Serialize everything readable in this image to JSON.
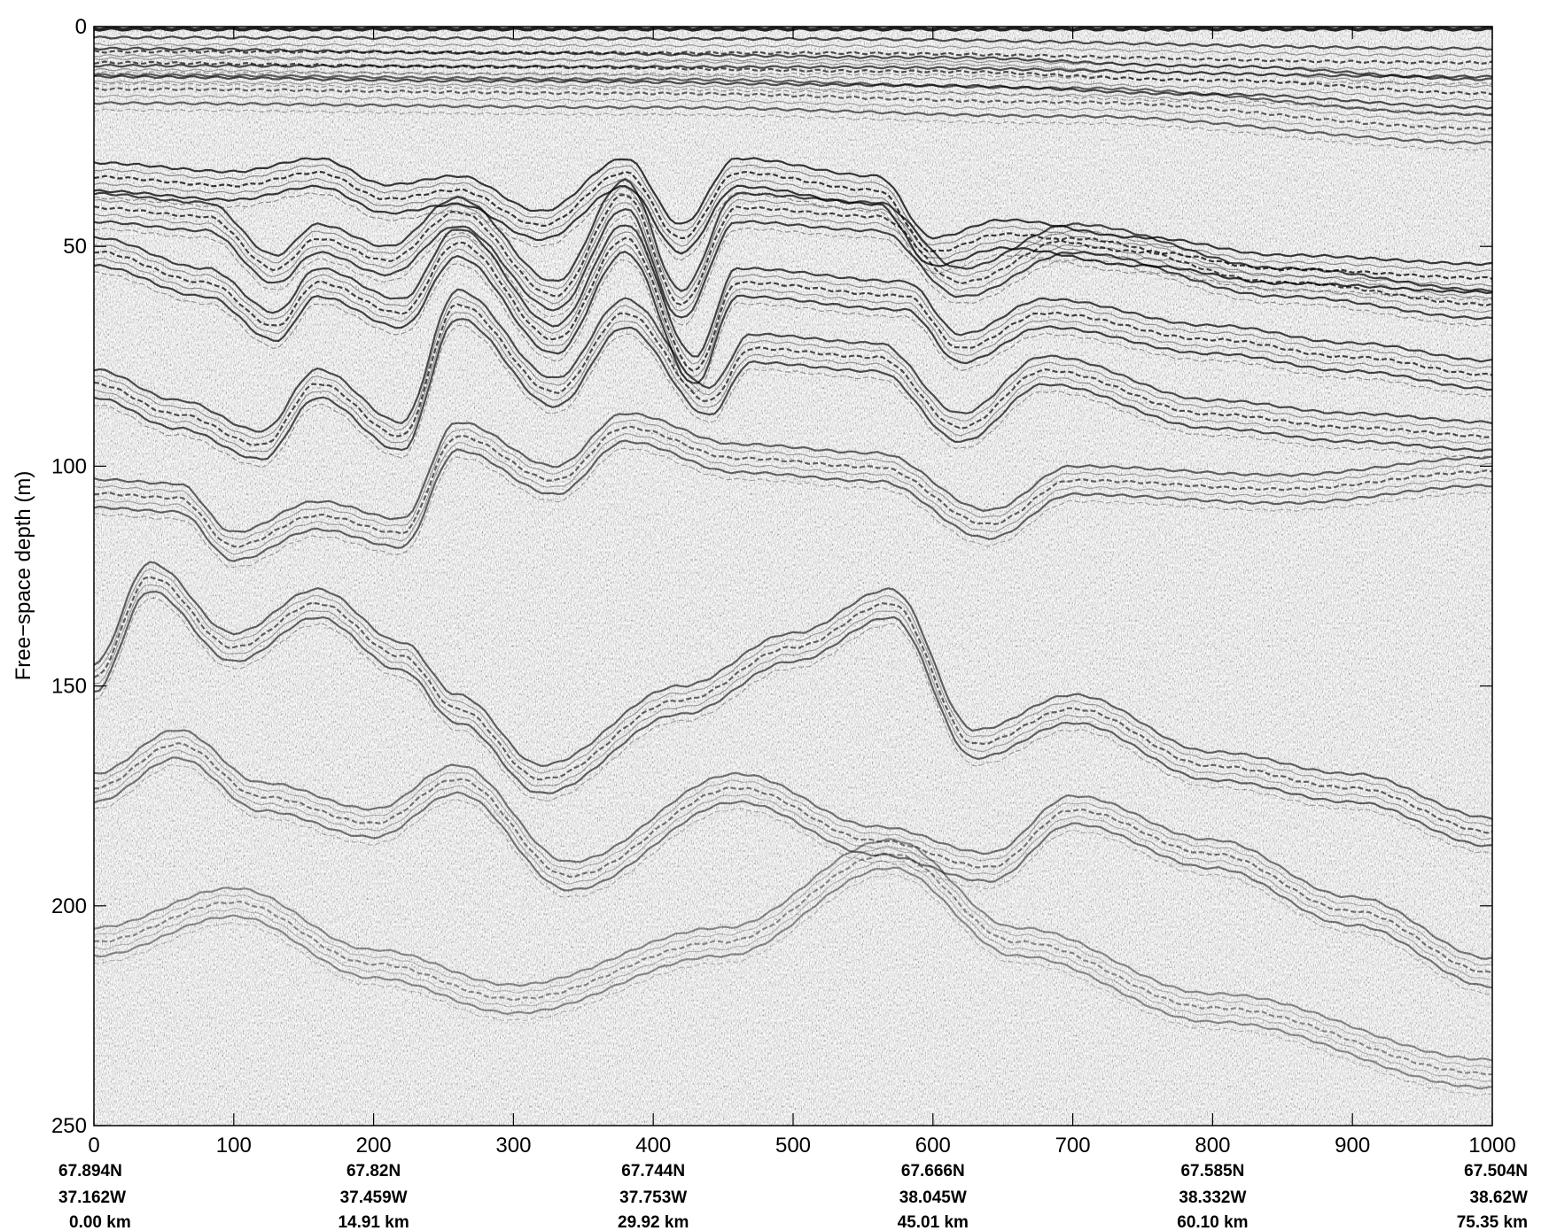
{
  "chart_data": {
    "type": "heatmap",
    "title": "",
    "xlabel": "",
    "ylabel": "Free−space depth (m)",
    "xlim": [
      0,
      1000
    ],
    "ylim": [
      250,
      0
    ],
    "y_inverted": true,
    "colormap": "grayscale",
    "grid": false,
    "x_ticks": [
      0,
      100,
      200,
      300,
      400,
      500,
      600,
      700,
      800,
      900,
      1000
    ],
    "y_ticks": [
      0,
      50,
      100,
      150,
      200,
      250
    ],
    "location_labels": [
      {
        "trace": 0,
        "lat": "67.894N",
        "lon": "37.162W",
        "dist": "0.00 km"
      },
      {
        "trace": 200,
        "lat": "67.82N",
        "lon": "37.459W",
        "dist": "14.91 km"
      },
      {
        "trace": 400,
        "lat": "67.744N",
        "lon": "37.753W",
        "dist": "29.92 km"
      },
      {
        "trace": 600,
        "lat": "67.666N",
        "lon": "38.045W",
        "dist": "45.01 km"
      },
      {
        "trace": 800,
        "lat": "67.585N",
        "lon": "38.332W",
        "dist": "60.10 km"
      },
      {
        "trace": 1000,
        "lat": "67.504N",
        "lon": "38.62W",
        "dist": "75.35 km"
      }
    ],
    "layers": [
      {
        "depths": [
          [
            0,
            0.5
          ],
          [
            1000,
            0.5
          ]
        ],
        "strength": 1.0
      },
      {
        "depths": [
          [
            0,
            2.5
          ],
          [
            500,
            2.8
          ],
          [
            1000,
            5
          ]
        ],
        "strength": 0.8
      },
      {
        "depths": [
          [
            0,
            5
          ],
          [
            300,
            6
          ],
          [
            600,
            7
          ],
          [
            800,
            9
          ],
          [
            1000,
            12
          ]
        ],
        "strength": 0.8
      },
      {
        "depths": [
          [
            0,
            11
          ],
          [
            400,
            12
          ],
          [
            700,
            14
          ],
          [
            1000,
            20
          ]
        ],
        "strength": 0.7
      },
      {
        "depths": [
          [
            0,
            31
          ],
          [
            100,
            33
          ],
          [
            160,
            30
          ],
          [
            210,
            36
          ],
          [
            260,
            34
          ],
          [
            320,
            42
          ],
          [
            380,
            30
          ],
          [
            420,
            45
          ],
          [
            460,
            30
          ],
          [
            560,
            34
          ],
          [
            600,
            48
          ],
          [
            650,
            44
          ],
          [
            750,
            48
          ],
          [
            850,
            52
          ],
          [
            1000,
            54
          ]
        ],
        "strength": 0.9
      },
      {
        "depths": [
          [
            0,
            38
          ],
          [
            80,
            40
          ],
          [
            130,
            52
          ],
          [
            160,
            45
          ],
          [
            210,
            50
          ],
          [
            260,
            39
          ],
          [
            330,
            58
          ],
          [
            380,
            35
          ],
          [
            420,
            60
          ],
          [
            460,
            38
          ],
          [
            560,
            40
          ],
          [
            620,
            55
          ],
          [
            700,
            45
          ],
          [
            850,
            55
          ],
          [
            1000,
            60
          ]
        ],
        "strength": 0.85
      },
      {
        "depths": [
          [
            0,
            48
          ],
          [
            80,
            55
          ],
          [
            130,
            65
          ],
          [
            160,
            55
          ],
          [
            220,
            62
          ],
          [
            260,
            46
          ],
          [
            330,
            68
          ],
          [
            380,
            45
          ],
          [
            430,
            75
          ],
          [
            460,
            55
          ],
          [
            580,
            58
          ],
          [
            620,
            70
          ],
          [
            680,
            62
          ],
          [
            800,
            68
          ],
          [
            900,
            72
          ],
          [
            1000,
            76
          ]
        ],
        "strength": 0.85
      },
      {
        "depths": [
          [
            0,
            78
          ],
          [
            60,
            85
          ],
          [
            120,
            92
          ],
          [
            160,
            78
          ],
          [
            220,
            90
          ],
          [
            260,
            60
          ],
          [
            330,
            80
          ],
          [
            380,
            62
          ],
          [
            440,
            82
          ],
          [
            470,
            70
          ],
          [
            560,
            72
          ],
          [
            620,
            88
          ],
          [
            680,
            75
          ],
          [
            800,
            85
          ],
          [
            900,
            88
          ],
          [
            1000,
            90
          ]
        ],
        "strength": 0.8
      },
      {
        "depths": [
          [
            0,
            103
          ],
          [
            60,
            104
          ],
          [
            100,
            115
          ],
          [
            160,
            108
          ],
          [
            220,
            112
          ],
          [
            260,
            90
          ],
          [
            330,
            100
          ],
          [
            380,
            88
          ],
          [
            460,
            95
          ],
          [
            560,
            97
          ],
          [
            640,
            110
          ],
          [
            700,
            100
          ],
          [
            850,
            102
          ],
          [
            1000,
            98
          ]
        ],
        "strength": 0.7
      },
      {
        "depths": [
          [
            0,
            145
          ],
          [
            40,
            122
          ],
          [
            100,
            138
          ],
          [
            160,
            128
          ],
          [
            220,
            140
          ],
          [
            260,
            152
          ],
          [
            320,
            168
          ],
          [
            420,
            150
          ],
          [
            500,
            138
          ],
          [
            570,
            128
          ],
          [
            630,
            160
          ],
          [
            700,
            152
          ],
          [
            800,
            165
          ],
          [
            900,
            170
          ],
          [
            1000,
            180
          ]
        ],
        "strength": 0.7
      },
      {
        "depths": [
          [
            0,
            170
          ],
          [
            60,
            160
          ],
          [
            120,
            172
          ],
          [
            200,
            178
          ],
          [
            260,
            168
          ],
          [
            340,
            190
          ],
          [
            460,
            170
          ],
          [
            560,
            182
          ],
          [
            640,
            188
          ],
          [
            700,
            175
          ],
          [
            800,
            185
          ],
          [
            900,
            198
          ],
          [
            1000,
            212
          ]
        ],
        "strength": 0.6
      },
      {
        "depths": [
          [
            0,
            205
          ],
          [
            100,
            196
          ],
          [
            200,
            210
          ],
          [
            300,
            218
          ],
          [
            450,
            205
          ],
          [
            570,
            185
          ],
          [
            660,
            205
          ],
          [
            800,
            220
          ],
          [
            1000,
            235
          ]
        ],
        "strength": 0.5
      }
    ]
  }
}
